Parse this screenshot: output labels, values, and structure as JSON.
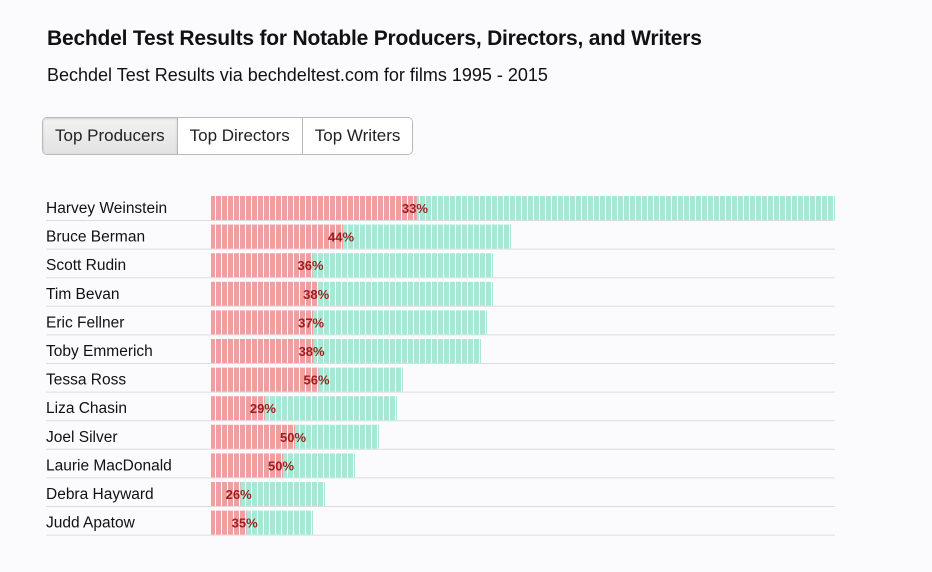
{
  "header": {
    "title": "Bechdel Test Results for Notable Producers, Directors, and Writers",
    "subtitle": "Bechdel Test Results via bechdeltest.com for films 1995 - 2015"
  },
  "tabs": [
    {
      "label": "Top Producers",
      "active": true
    },
    {
      "label": "Top Directors",
      "active": false
    },
    {
      "label": "Top Writers",
      "active": false
    }
  ],
  "colors": {
    "pass": "#ef9f9f",
    "fail": "#a6e8d3",
    "label": "#9a1f1f",
    "rule": "#dcdcdc"
  },
  "chart_data": {
    "type": "bar",
    "orientation": "horizontal",
    "stacked": true,
    "categories": [
      "Harvey Weinstein",
      "Bruce Berman",
      "Scott Rudin",
      "Tim Bevan",
      "Eric Fellner",
      "Toby Emmerich",
      "Tessa Ross",
      "Liza Chasin",
      "Joel Silver",
      "Laurie MacDonald",
      "Debra Hayward",
      "Judd Apatow"
    ],
    "films": [
      104,
      50,
      47,
      47,
      46,
      45,
      32,
      31,
      28,
      24,
      19,
      17
    ],
    "percent_labels": [
      "33%",
      "44%",
      "36%",
      "38%",
      "37%",
      "38%",
      "56%",
      "29%",
      "50%",
      "50%",
      "26%",
      "35%"
    ],
    "pass_share": [
      0.33,
      0.44,
      0.36,
      0.38,
      0.37,
      0.38,
      0.56,
      0.29,
      0.5,
      0.5,
      0.26,
      0.35
    ]
  }
}
